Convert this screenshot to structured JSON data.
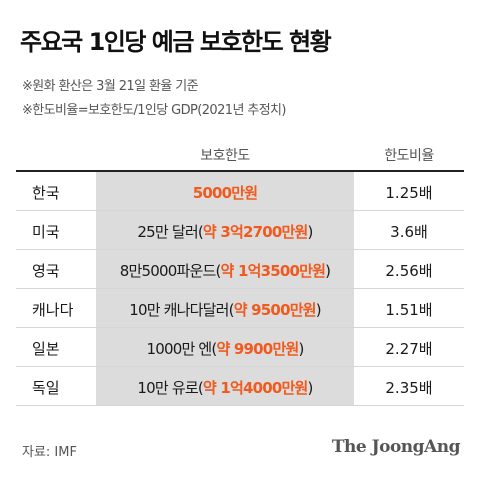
{
  "title": "주요국 1인당 예금 보호한도 현황",
  "notes": [
    "※원화 환산은 3월 21일 환율 기준",
    "※한도비율=보호한도/1인당 GDP(2021년 추정치)"
  ],
  "table": {
    "headers": {
      "protection": "보호한도",
      "ratio": "한도비율"
    },
    "rows": [
      {
        "country": "한국",
        "amount_prefix": "",
        "amount_won": "5000만원",
        "amount_suffix": "",
        "ratio": "1.25배"
      },
      {
        "country": "미국",
        "amount_prefix": "25만 달러(",
        "amount_won": "약 3억2700만원",
        "amount_suffix": ")",
        "ratio": "3.6배"
      },
      {
        "country": "영국",
        "amount_prefix": "8만5000파운드(",
        "amount_won": "약 1억3500만원",
        "amount_suffix": ")",
        "ratio": "2.56배"
      },
      {
        "country": "캐나다",
        "amount_prefix": "10만 캐나다달러(",
        "amount_won": "약 9500만원",
        "amount_suffix": ")",
        "ratio": "1.51배"
      },
      {
        "country": "일본",
        "amount_prefix": "1000만 엔(",
        "amount_won": "약 9900만원",
        "amount_suffix": ")",
        "ratio": "2.27배"
      },
      {
        "country": "독일",
        "amount_prefix": "10만 유로(",
        "amount_won": "약 1억4000만원",
        "amount_suffix": ")",
        "ratio": "2.35배"
      }
    ]
  },
  "source": "자료: IMF",
  "logo": "The JoongAng",
  "colors": {
    "accent": "#f05a1e",
    "column_bg": "#dcdcdc"
  }
}
